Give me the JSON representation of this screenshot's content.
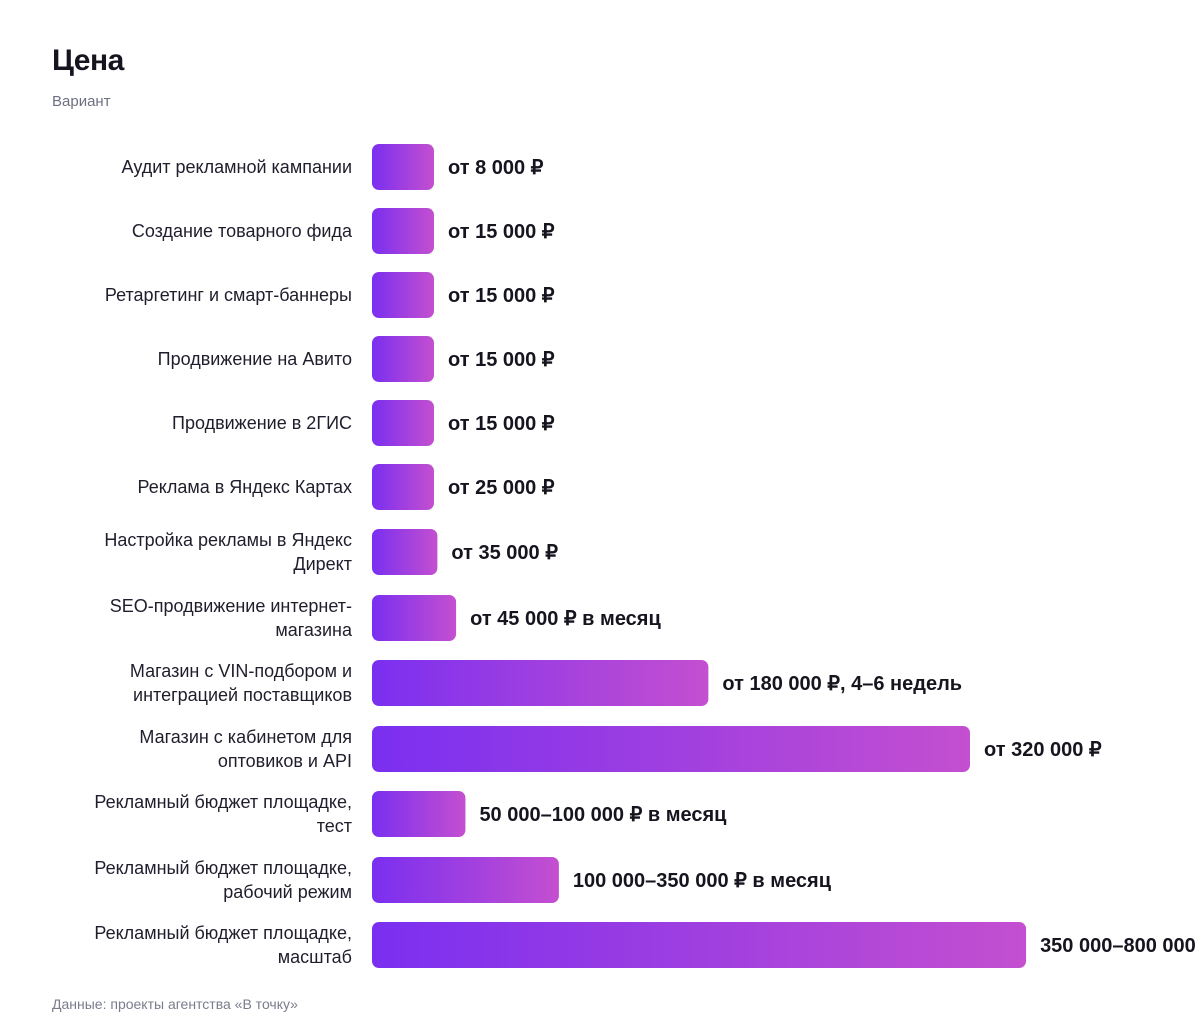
{
  "header": {
    "title": "Цена",
    "subtitle": "Вариант"
  },
  "footer": {
    "source": "Данные: проекты агентства «В точку»"
  },
  "colors": {
    "bar_start": "#7a2ff0",
    "bar_end": "#c44fd0",
    "text": "#1c1b2a",
    "muted": "#6e7080"
  },
  "chart_data": {
    "type": "bar",
    "orientation": "horizontal",
    "title": "Цена",
    "subtitle": "Вариант",
    "xlabel": "",
    "ylabel": "",
    "grid": false,
    "legend": "none",
    "categories": [
      [
        "Аудит рекламной кампании"
      ],
      [
        "Создание товарного фида"
      ],
      [
        "Ретаргетинг и смарт-баннеры"
      ],
      [
        "Продвижение на Авито"
      ],
      [
        "Продвижение в 2ГИС"
      ],
      [
        "Реклама в Яндекс Картах"
      ],
      [
        "Настройка рекламы в Яндекс",
        "Директ"
      ],
      [
        "SEO-продвижение интернет-",
        "магазина"
      ],
      [
        "Магазин с VIN-подбором и",
        "интеграцией поставщиков"
      ],
      [
        "Магазин с кабинетом для",
        "оптовиков и API"
      ],
      [
        "Рекламный бюджет площадке,",
        "тест"
      ],
      [
        "Рекламный бюджет площадке,",
        "рабочий режим"
      ],
      [
        "Рекламный бюджет площадке,",
        "масштаб"
      ]
    ],
    "values": [
      8000,
      15000,
      15000,
      15000,
      15000,
      25000,
      35000,
      45000,
      180000,
      320000,
      50000,
      100000,
      350000
    ],
    "data_labels": [
      "от 8 000 ₽",
      "от 15 000 ₽",
      "от 15 000 ₽",
      "от 15 000 ₽",
      "от 15 000 ₽",
      "от 25 000 ₽",
      "от 35 000 ₽",
      "от 45 000 ₽ в месяц",
      "от 180 000 ₽, 4–6 недель",
      "от 320 000 ₽",
      "50 000–100 000 ₽ в месяц",
      "100 000–350 000 ₽ в месяц",
      "350 000–800 000"
    ]
  }
}
